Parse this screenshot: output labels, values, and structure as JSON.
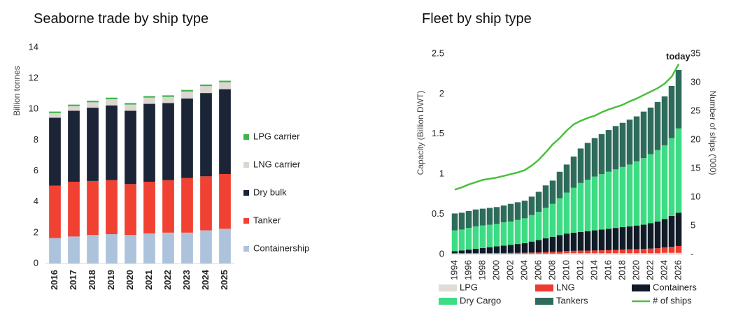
{
  "chart_data": [
    {
      "type": "bar",
      "stacked": true,
      "title": "Seaborne trade by ship type",
      "y_label": "Billion tonnes",
      "categories": [
        "2016",
        "2017",
        "2018",
        "2019",
        "2020",
        "2021",
        "2022",
        "2023",
        "2024",
        "2025"
      ],
      "ylim": [
        0,
        14
      ],
      "yticks": [
        0,
        2,
        4,
        6,
        8,
        10,
        12,
        14
      ],
      "grid": false,
      "legend": "right",
      "series": [
        {
          "name": "Containership",
          "color": "#adc3dc",
          "values": [
            1.65,
            1.75,
            1.85,
            1.9,
            1.85,
            1.95,
            2.0,
            2.0,
            2.15,
            2.25
          ]
        },
        {
          "name": "Tanker",
          "color": "#f04132",
          "values": [
            3.4,
            3.55,
            3.5,
            3.5,
            3.3,
            3.35,
            3.4,
            3.55,
            3.5,
            3.55
          ]
        },
        {
          "name": "Dry bulk",
          "color": "#1c2537",
          "values": [
            4.4,
            4.6,
            4.75,
            4.85,
            4.75,
            5.05,
            5.0,
            5.15,
            5.4,
            5.5
          ]
        },
        {
          "name": "LNG carrier",
          "color": "#dcd6d0",
          "values": [
            0.3,
            0.3,
            0.35,
            0.4,
            0.4,
            0.4,
            0.4,
            0.45,
            0.45,
            0.45
          ]
        },
        {
          "name": "LPG carrier",
          "color": "#3cb44a",
          "values": [
            0.1,
            0.1,
            0.1,
            0.1,
            0.1,
            0.1,
            0.1,
            0.1,
            0.1,
            0.1
          ]
        }
      ]
    },
    {
      "type": "bar",
      "stacked": true,
      "title": "Fleet by ship type",
      "y_label": "Capacity (Billion DWT)",
      "y2_label": "Number of ships ('000)",
      "categories": [
        "1994",
        null,
        "1996",
        null,
        "1998",
        null,
        "2000",
        null,
        "2002",
        null,
        "2004",
        null,
        "2006",
        null,
        "2008",
        null,
        "2010",
        null,
        "2012",
        null,
        "2014",
        null,
        "2016",
        null,
        "2018",
        null,
        "2020",
        null,
        "2022",
        null,
        "2024",
        null,
        "2026"
      ],
      "ylim": [
        0,
        2.5
      ],
      "yticks": [
        0,
        0.5,
        1,
        1.5,
        2,
        2.5
      ],
      "y2lim": [
        0,
        35
      ],
      "y2ticks": [
        {
          "value": 0,
          "label": "-"
        },
        5,
        10,
        15,
        20,
        25,
        30,
        35
      ],
      "grid": false,
      "legend": "bottom",
      "annotations": [
        {
          "text": "today"
        }
      ],
      "series": [
        {
          "name": "LPG",
          "color": "#e0dbd5",
          "values": [
            0.01,
            0.01,
            0.01,
            0.01,
            0.01,
            0.01,
            0.01,
            0.01,
            0.01,
            0.01,
            0.01,
            0.01,
            0.01,
            0.01,
            0.01,
            0.01,
            0.015,
            0.015,
            0.015,
            0.015,
            0.015,
            0.015,
            0.015,
            0.015,
            0.015,
            0.015,
            0.015,
            0.015,
            0.015,
            0.015,
            0.02,
            0.02,
            0.02
          ]
        },
        {
          "name": "LNG",
          "color": "#ee3b2e",
          "values": [
            0.005,
            0.005,
            0.006,
            0.006,
            0.007,
            0.007,
            0.008,
            0.008,
            0.009,
            0.01,
            0.011,
            0.013,
            0.015,
            0.018,
            0.022,
            0.025,
            0.028,
            0.03,
            0.032,
            0.033,
            0.034,
            0.036,
            0.038,
            0.041,
            0.045,
            0.048,
            0.05,
            0.053,
            0.057,
            0.062,
            0.068,
            0.075,
            0.085
          ]
        },
        {
          "name": "Containers",
          "color": "#111a27",
          "values": [
            0.025,
            0.035,
            0.044,
            0.054,
            0.063,
            0.073,
            0.082,
            0.092,
            0.101,
            0.11,
            0.119,
            0.137,
            0.155,
            0.172,
            0.188,
            0.205,
            0.217,
            0.225,
            0.233,
            0.242,
            0.251,
            0.259,
            0.267,
            0.274,
            0.28,
            0.287,
            0.295,
            0.302,
            0.318,
            0.333,
            0.352,
            0.385,
            0.415
          ]
        },
        {
          "name": "Dry Cargo",
          "color": "#3ddc84",
          "values": [
            0.26,
            0.26,
            0.27,
            0.28,
            0.28,
            0.28,
            0.28,
            0.29,
            0.29,
            0.3,
            0.31,
            0.33,
            0.35,
            0.38,
            0.41,
            0.46,
            0.51,
            0.56,
            0.61,
            0.64,
            0.67,
            0.69,
            0.71,
            0.73,
            0.75,
            0.77,
            0.8,
            0.83,
            0.86,
            0.89,
            0.92,
            0.97,
            1.05
          ]
        },
        {
          "name": "Tankers",
          "color": "#2e6b5a",
          "values": [
            0.21,
            0.21,
            0.21,
            0.21,
            0.21,
            0.21,
            0.21,
            0.21,
            0.22,
            0.22,
            0.22,
            0.23,
            0.25,
            0.28,
            0.29,
            0.33,
            0.35,
            0.39,
            0.43,
            0.46,
            0.48,
            0.5,
            0.52,
            0.54,
            0.55,
            0.56,
            0.56,
            0.58,
            0.58,
            0.6,
            0.61,
            0.65,
            0.73
          ]
        },
        {
          "name": "# of ships",
          "color": "#4cbf3d",
          "type": "line",
          "axis": "y2",
          "values": [
            11.3,
            11.7,
            12.2,
            12.6,
            13.0,
            13.2,
            13.4,
            13.7,
            14.0,
            14.3,
            14.7,
            15.5,
            16.5,
            17.8,
            19.2,
            20.3,
            21.6,
            22.7,
            23.3,
            23.8,
            24.2,
            24.8,
            25.3,
            25.7,
            26.1,
            26.7,
            27.2,
            27.8,
            28.4,
            29.0,
            29.8,
            31.0,
            33.2
          ]
        }
      ]
    }
  ]
}
